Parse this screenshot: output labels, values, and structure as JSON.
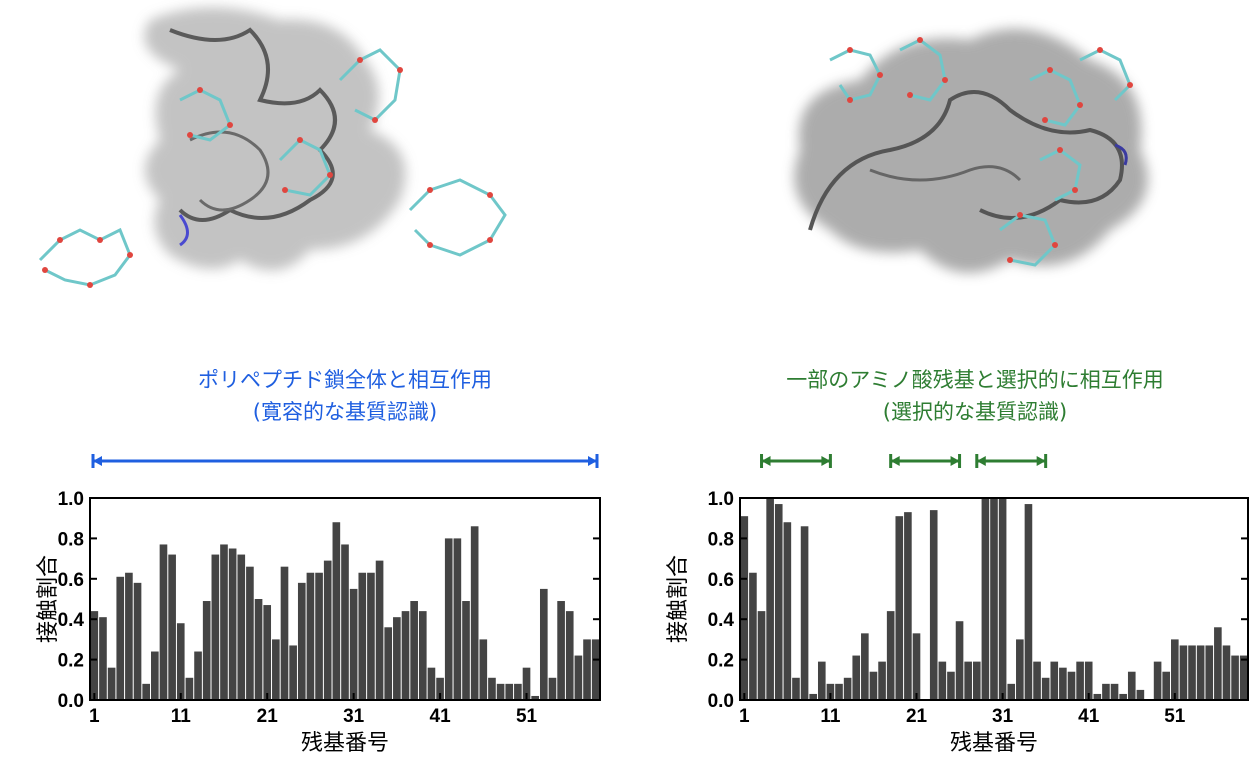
{
  "panels": [
    {
      "caption_line1": "ポリペプチド鎖全体と相互作用",
      "caption_line2": "(寛容的な基質認識)",
      "caption_color": "#1f5fe0",
      "range_color": "#1f5fe0",
      "ranges": [
        [
          1,
          59
        ]
      ]
    },
    {
      "caption_line1": "一部のアミノ酸残基と選択的に相互作用",
      "caption_line2": "(選択的な基質認識)",
      "caption_color": "#2e7d32",
      "range_color": "#2e7d32",
      "ranges": [
        [
          3,
          11
        ],
        [
          18,
          26
        ],
        [
          28,
          36
        ]
      ]
    }
  ],
  "bar_color": "#444444",
  "chart_data": [
    {
      "type": "bar",
      "xlabel": "残基番号",
      "ylabel": "接触割合",
      "xticks": [
        1,
        11,
        21,
        31,
        41,
        51
      ],
      "yticks": [
        "0.0",
        "0.2",
        "0.4",
        "0.6",
        "0.8",
        "1.0"
      ],
      "ylim": [
        0,
        1
      ],
      "x_start": 1,
      "values": [
        0.44,
        0.41,
        0.16,
        0.61,
        0.63,
        0.58,
        0.08,
        0.24,
        0.77,
        0.72,
        0.38,
        0.11,
        0.24,
        0.49,
        0.72,
        0.77,
        0.75,
        0.72,
        0.66,
        0.5,
        0.47,
        0.3,
        0.66,
        0.27,
        0.58,
        0.63,
        0.63,
        0.69,
        0.88,
        0.77,
        0.55,
        0.63,
        0.63,
        0.69,
        0.36,
        0.41,
        0.44,
        0.49,
        0.44,
        0.16,
        0.11,
        0.8,
        0.8,
        0.49,
        0.86,
        0.3,
        0.11,
        0.08,
        0.08,
        0.08,
        0.16,
        0.02,
        0.55,
        0.11,
        0.49,
        0.44,
        0.22,
        0.3,
        0.3
      ]
    },
    {
      "type": "bar",
      "xlabel": "残基番号",
      "ylabel": "接触割合",
      "xticks": [
        1,
        11,
        21,
        31,
        41,
        51
      ],
      "yticks": [
        "0.0",
        "0.2",
        "0.4",
        "0.6",
        "0.8",
        "1.0"
      ],
      "ylim": [
        0,
        1
      ],
      "x_start": 1,
      "values": [
        0.91,
        0.63,
        0.44,
        1.0,
        0.97,
        0.88,
        0.11,
        0.86,
        0.03,
        0.19,
        0.08,
        0.08,
        0.11,
        0.22,
        0.33,
        0.14,
        0.19,
        0.44,
        0.91,
        0.93,
        0.33,
        0.0,
        0.94,
        0.19,
        0.14,
        0.39,
        0.19,
        0.19,
        1.0,
        1.0,
        1.0,
        0.08,
        0.3,
        0.97,
        0.19,
        0.11,
        0.19,
        0.16,
        0.14,
        0.19,
        0.19,
        0.03,
        0.08,
        0.08,
        0.03,
        0.14,
        0.05,
        0.0,
        0.19,
        0.14,
        0.3,
        0.27,
        0.27,
        0.27,
        0.27,
        0.36,
        0.27,
        0.22,
        0.22
      ]
    }
  ]
}
